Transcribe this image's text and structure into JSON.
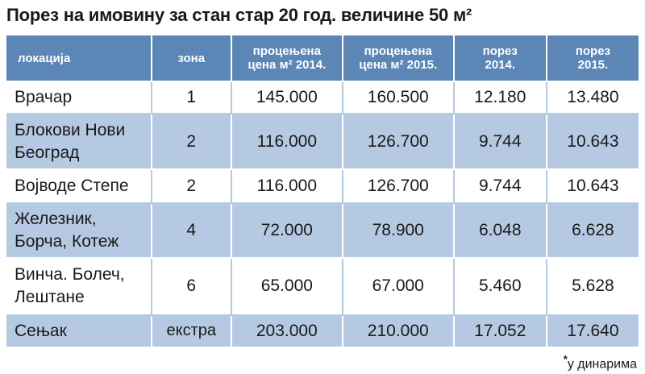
{
  "title": "Порез на имовину за стан стар 20 год. величине 50 м²",
  "colors": {
    "header_bg": "#5b86b6",
    "row_alt_bg": "#b5c9e3",
    "row_bg": "#ffffff"
  },
  "table": {
    "headers": [
      {
        "line1": "локација",
        "line2": ""
      },
      {
        "line1": "зона",
        "line2": ""
      },
      {
        "line1": "процењена",
        "line2": "цена м² 2014."
      },
      {
        "line1": "процењена",
        "line2": "цена м² 2015."
      },
      {
        "line1": "порез",
        "line2": "2014."
      },
      {
        "line1": "порез",
        "line2": "2015."
      }
    ],
    "rows": [
      {
        "loc1": "Врачар",
        "loc2": "",
        "zona": "1",
        "cena2014": "145.000",
        "cena2015": "160.500",
        "porez2014": "12.180",
        "porez2015": "13.480"
      },
      {
        "loc1": "Блокови Нови",
        "loc2": "Београд",
        "zona": "2",
        "cena2014": "116.000",
        "cena2015": "126.700",
        "porez2014": "9.744",
        "porez2015": "10.643"
      },
      {
        "loc1": "Војводе Степе",
        "loc2": "",
        "zona": "2",
        "cena2014": "116.000",
        "cena2015": "126.700",
        "porez2014": "9.744",
        "porez2015": "10.643"
      },
      {
        "loc1": "Железник,",
        "loc2": "Борча, Котеж",
        "zona": "4",
        "cena2014": "72.000",
        "cena2015": "78.900",
        "porez2014": "6.048",
        "porez2015": "6.628"
      },
      {
        "loc1": "Винча. Болеч,",
        "loc2": "Лештане",
        "zona": "6",
        "cena2014": "65.000",
        "cena2015": "67.000",
        "porez2014": "5.460",
        "porez2015": "5.628"
      },
      {
        "loc1": "Сењак",
        "loc2": "",
        "zona": "екстра",
        "cena2014": "203.000",
        "cena2015": "210.000",
        "porez2014": "17.052",
        "porez2015": "17.640"
      }
    ]
  },
  "note": {
    "star": "*",
    "text": "у динарима"
  }
}
